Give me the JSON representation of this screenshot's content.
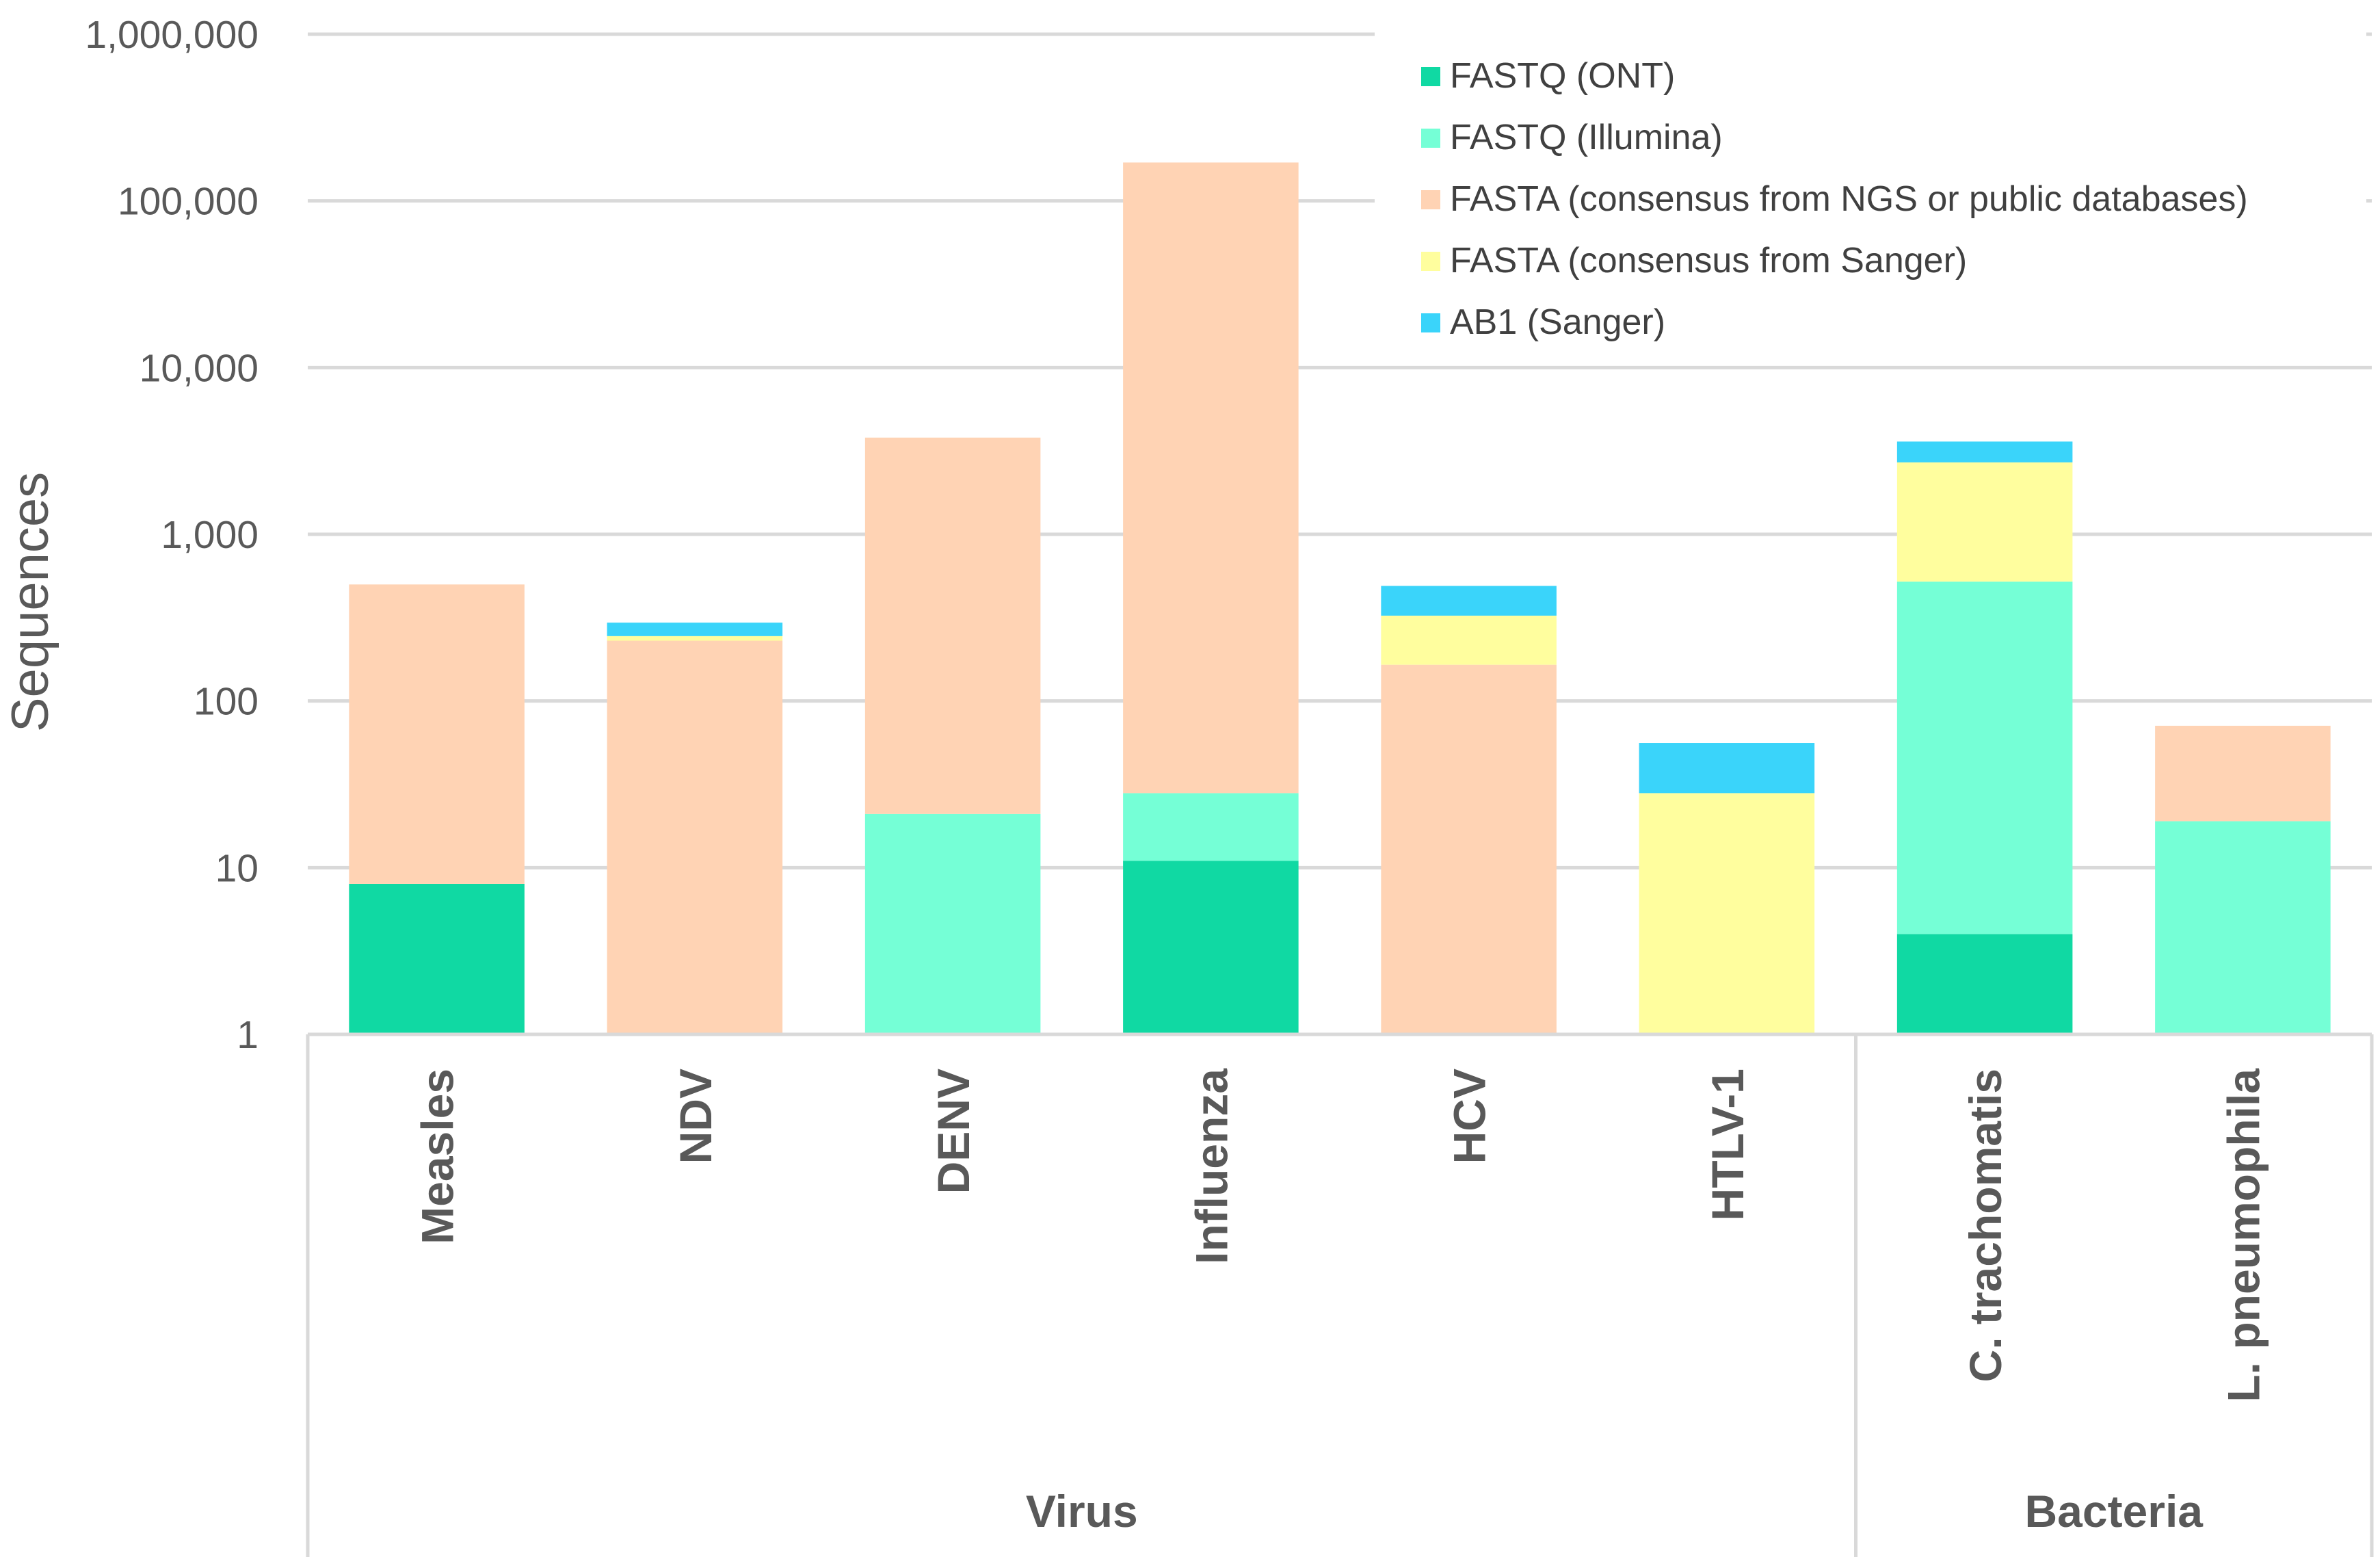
{
  "chart_data": {
    "type": "bar",
    "stacked": true,
    "scale": "log",
    "title": "",
    "xlabel": "",
    "ylabel": "Sequences",
    "ylim": [
      1,
      1000000
    ],
    "y_ticks": [
      1,
      10,
      100,
      1000,
      10000,
      100000,
      1000000
    ],
    "y_tick_labels": [
      "1",
      "10",
      "100",
      "1,000",
      "10,000",
      "100,000",
      "1,000,000"
    ],
    "categories": [
      "Measles",
      "NDV",
      "DENV",
      "Influenza",
      "HCV",
      "HTLV-1",
      "C. trachomatis",
      "L. pneumophila"
    ],
    "groups": [
      {
        "label": "Virus",
        "count": 6
      },
      {
        "label": "Bacteria",
        "count": 2
      }
    ],
    "legend_position": "top-right",
    "series": [
      {
        "name": "FASTQ (ONT)",
        "color": "#10d9a3",
        "values": [
          8,
          0,
          0,
          11,
          0,
          0,
          4,
          0
        ]
      },
      {
        "name": "FASTQ (Illumina)",
        "color": "#75ffd6",
        "values": [
          0,
          0,
          21,
          17,
          0,
          0,
          516,
          19
        ]
      },
      {
        "name": "FASTA (consensus from NGS or public databases)",
        "color": "#ffd3b4",
        "values": [
          492,
          230,
          3780,
          170000,
          165,
          0,
          0,
          52
        ]
      },
      {
        "name": "FASTA (consensus from Sanger)",
        "color": "#fffe9e",
        "values": [
          0,
          15,
          0,
          0,
          160,
          28,
          2180,
          0
        ]
      },
      {
        "name": "AB1 (Sanger)",
        "color": "#3ad4fa",
        "values": [
          0,
          50,
          0,
          0,
          165,
          28,
          900,
          0
        ]
      }
    ]
  }
}
